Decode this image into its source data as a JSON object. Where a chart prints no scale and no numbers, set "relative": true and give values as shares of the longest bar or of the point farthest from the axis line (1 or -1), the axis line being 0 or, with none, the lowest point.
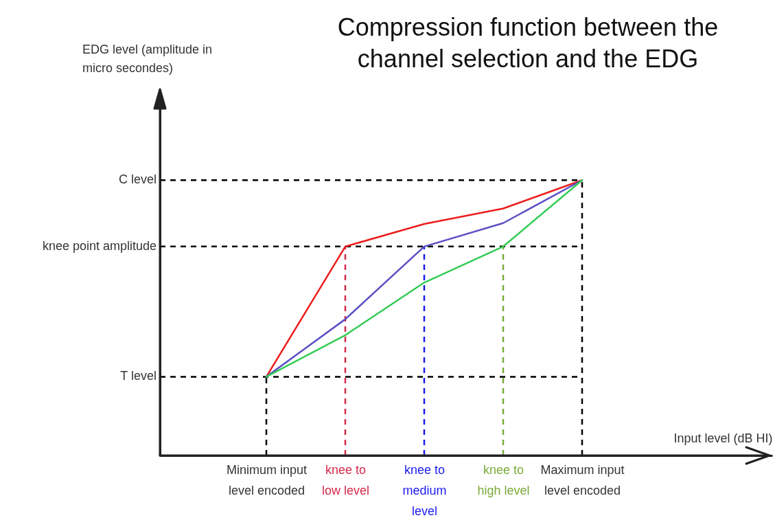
{
  "chart_data": {
    "type": "line",
    "title": "Compression function between the channel selection and the EDG",
    "xlabel": "Input level (dB HI)",
    "annotations": [
      "EDG level (amplitude in micro secondes)"
    ],
    "relative": true,
    "categories": [
      "Minimum input level encoded",
      "knee to low level",
      "knee to medium level",
      "knee to high level",
      "Maximum input level encoded"
    ],
    "series": [
      {
        "color": "#ee1c1c",
        "values": [
          0.286,
          0.759,
          0.841,
          0.897,
          1
        ]
      },
      {
        "color": "#5b4fc4",
        "values": [
          0.286,
          0.495,
          0.759,
          0.844,
          1
        ]
      },
      {
        "color": "#33cc55",
        "values": [
          0.286,
          0.437,
          0.628,
          0.759,
          1
        ]
      }
    ],
    "ref_lines": [
      {
        "axis": "y",
        "value": 0.286,
        "label": "T level",
        "color": "#000000",
        "line_style": "dashed"
      },
      {
        "axis": "y",
        "value": 0.759,
        "label": "knee point amplitude",
        "color": "#000000",
        "line_style": "dashed"
      },
      {
        "axis": "y",
        "value": 1,
        "label": "C level",
        "color": "#000000",
        "line_style": "dashed"
      },
      {
        "axis": "x",
        "value": "Minimum input level encoded",
        "color": "#000000",
        "line_style": "dashed"
      },
      {
        "axis": "x",
        "value": "knee to low level",
        "color": "#d42a4a",
        "line_style": "dashed"
      },
      {
        "axis": "x",
        "value": "knee to medium level",
        "color": "#1a1aee",
        "line_style": "dashed"
      },
      {
        "axis": "x",
        "value": "knee to high level",
        "color": "#7aaa3a",
        "line_style": "dashed"
      },
      {
        "axis": "x",
        "value": "Maximum input level encoded",
        "color": "#000000",
        "line_style": "dashed"
      }
    ],
    "grid": false,
    "marker": "none",
    "line_style": "solid"
  }
}
